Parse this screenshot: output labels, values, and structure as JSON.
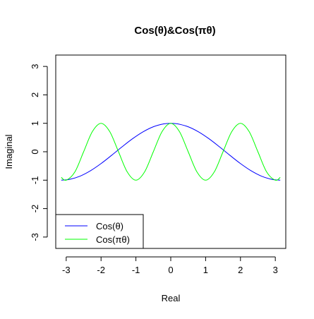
{
  "chart_data": {
    "type": "line",
    "title": "Cos(θ)&Cos(πθ)",
    "xlabel": "Real",
    "ylabel": "Imaginal",
    "xlim": [
      -3.3,
      3.3
    ],
    "ylim": [
      -3.4,
      3.4
    ],
    "x_ticks": [
      -3,
      -2,
      -1,
      0,
      1,
      2,
      3
    ],
    "x_tick_labels": [
      "-3",
      "-2",
      "-1",
      "0",
      "1",
      "2",
      "3"
    ],
    "y_ticks": [
      -3,
      -2,
      -1,
      0,
      1,
      2,
      3
    ],
    "y_tick_labels": [
      "-3",
      "-2",
      "-1",
      "0",
      "1",
      "2",
      "3"
    ],
    "grid": false,
    "legend": {
      "position": "bottom-left",
      "entries": [
        "Cos(θ)",
        "Cos(πθ)"
      ]
    },
    "series": [
      {
        "name": "Cos(θ)",
        "color": "#0000ff",
        "x": [
          -3.1416,
          -2.9,
          -2.6,
          -2.3,
          -2.0,
          -1.7,
          -1.4,
          -1.1,
          -0.8,
          -0.5,
          -0.2,
          0.0,
          0.2,
          0.5,
          0.8,
          1.1,
          1.4,
          1.7,
          2.0,
          2.3,
          2.6,
          2.9,
          3.1416
        ],
        "y": [
          -1.0,
          -0.971,
          -0.857,
          -0.666,
          -0.416,
          -0.129,
          0.17,
          0.454,
          0.697,
          0.878,
          0.98,
          1.0,
          0.98,
          0.878,
          0.697,
          0.454,
          0.17,
          -0.129,
          -0.416,
          -0.666,
          -0.857,
          -0.971,
          -1.0
        ]
      },
      {
        "name": "Cos(πθ)",
        "color": "#00ff00",
        "x": [
          -3.1416,
          -3.0,
          -2.75,
          -2.5,
          -2.25,
          -2.0,
          -1.75,
          -1.5,
          -1.25,
          -1.0,
          -0.75,
          -0.5,
          -0.25,
          0.0,
          0.25,
          0.5,
          0.75,
          1.0,
          1.25,
          1.5,
          1.75,
          2.0,
          2.25,
          2.5,
          2.75,
          3.0,
          3.1416
        ],
        "y": [
          -0.902,
          -1.0,
          -0.707,
          0.0,
          0.707,
          1.0,
          0.707,
          0.0,
          -0.707,
          -1.0,
          -0.707,
          0.0,
          0.707,
          1.0,
          0.707,
          0.0,
          -0.707,
          -1.0,
          -0.707,
          0.0,
          0.707,
          1.0,
          0.707,
          0.0,
          -0.707,
          -1.0,
          -0.902
        ]
      }
    ]
  }
}
